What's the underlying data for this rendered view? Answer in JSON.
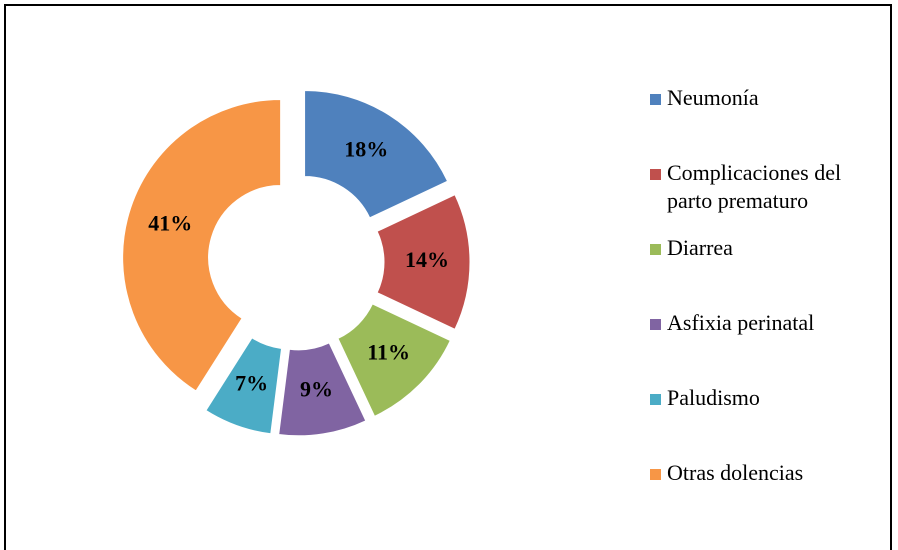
{
  "chart_data": {
    "type": "doughnut",
    "categories": [
      "Neumonía",
      "Complicaciones del parto prematuro",
      "Diarrea",
      "Asfixia perinatal",
      "Paludismo",
      "Otras dolencias"
    ],
    "values": [
      18,
      14,
      11,
      9,
      7,
      41
    ],
    "value_labels": [
      "18%",
      "14%",
      "11%",
      "9%",
      "7%",
      "41%"
    ],
    "colors": [
      "#4f81bd",
      "#c0504d",
      "#9bbb59",
      "#8064a2",
      "#4bacc6",
      "#f79646"
    ],
    "legend": "right"
  }
}
